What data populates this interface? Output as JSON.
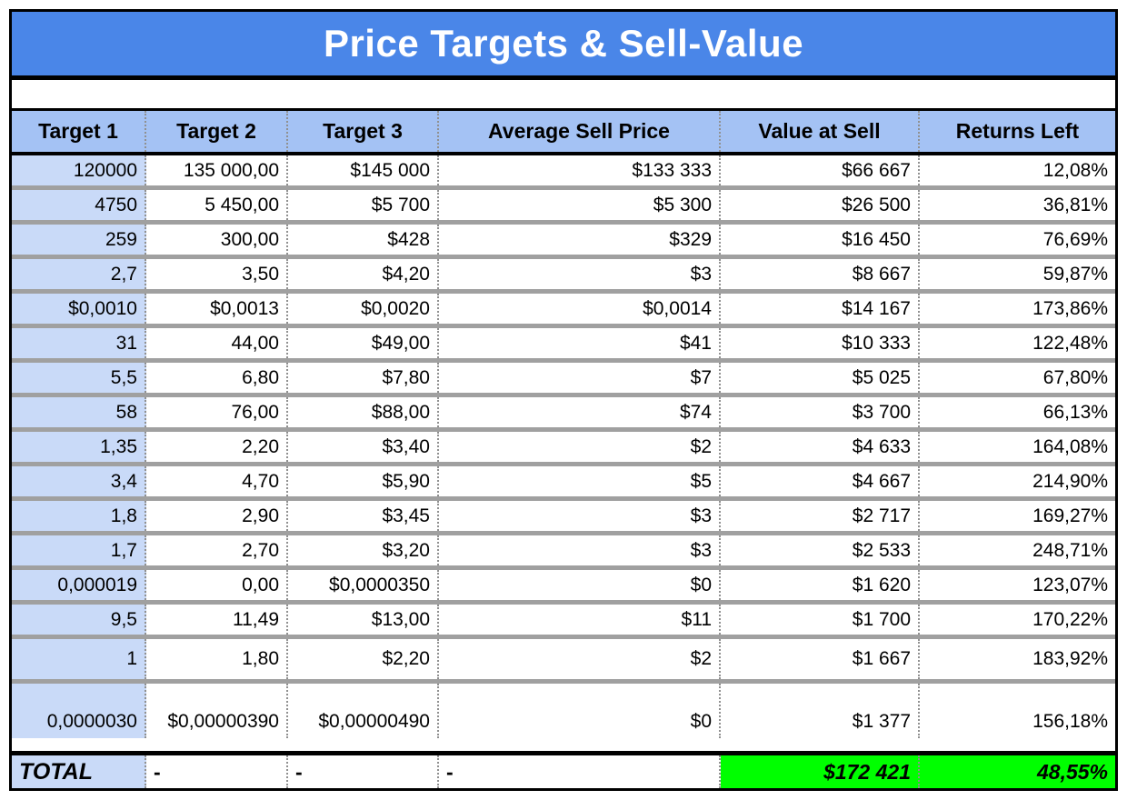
{
  "title": "Price Targets & Sell-Value",
  "columns": [
    "Target 1",
    "Target 2",
    "Target 3",
    "Average Sell Price",
    "Value at Sell",
    "Returns Left"
  ],
  "rows": [
    [
      "120000",
      "135 000,00",
      "$145 000",
      "$133 333",
      "$66 667",
      "12,08%"
    ],
    [
      "4750",
      "5 450,00",
      "$5 700",
      "$5 300",
      "$26 500",
      "36,81%"
    ],
    [
      "259",
      "300,00",
      "$428",
      "$329",
      "$16 450",
      "76,69%"
    ],
    [
      "2,7",
      "3,50",
      "$4,20",
      "$3",
      "$8 667",
      "59,87%"
    ],
    [
      "$0,0010",
      "$0,0013",
      "$0,0020",
      "$0,0014",
      "$14 167",
      "173,86%"
    ],
    [
      "31",
      "44,00",
      "$49,00",
      "$41",
      "$10 333",
      "122,48%"
    ],
    [
      "5,5",
      "6,80",
      "$7,80",
      "$7",
      "$5 025",
      "67,80%"
    ],
    [
      "58",
      "76,00",
      "$88,00",
      "$74",
      "$3 700",
      "66,13%"
    ],
    [
      "1,35",
      "2,20",
      "$3,40",
      "$2",
      "$4 633",
      "164,08%"
    ],
    [
      "3,4",
      "4,70",
      "$5,90",
      "$5",
      "$4 667",
      "214,90%"
    ],
    [
      "1,8",
      "2,90",
      "$3,45",
      "$3",
      "$2 717",
      "169,27%"
    ],
    [
      "1,7",
      "2,70",
      "$3,20",
      "$3",
      "$2 533",
      "248,71%"
    ],
    [
      "0,000019",
      "0,00",
      "$0,0000350",
      "$0",
      "$1 620",
      "123,07%"
    ],
    [
      "9,5",
      "11,49",
      "$13,00",
      "$11",
      "$1 700",
      "170,22%"
    ],
    [
      "1",
      "1,80",
      "$2,20",
      "$2",
      "$1 667",
      "183,92%"
    ],
    [
      "0,0000030",
      "$0,00000390",
      "$0,00000490",
      "$0",
      "$1 377",
      "156,18%"
    ]
  ],
  "total": {
    "label": "TOTAL",
    "dashes": [
      "-",
      "-",
      "-"
    ],
    "value_at_sell": "$172 421",
    "returns_left": "48,55%"
  },
  "colors": {
    "title_bg": "#4a86e8",
    "header_bg": "#a4c2f4",
    "first_column_bg": "#c9daf8",
    "total_highlight": "#00ff00",
    "row_separator": "#a0a0a0"
  }
}
